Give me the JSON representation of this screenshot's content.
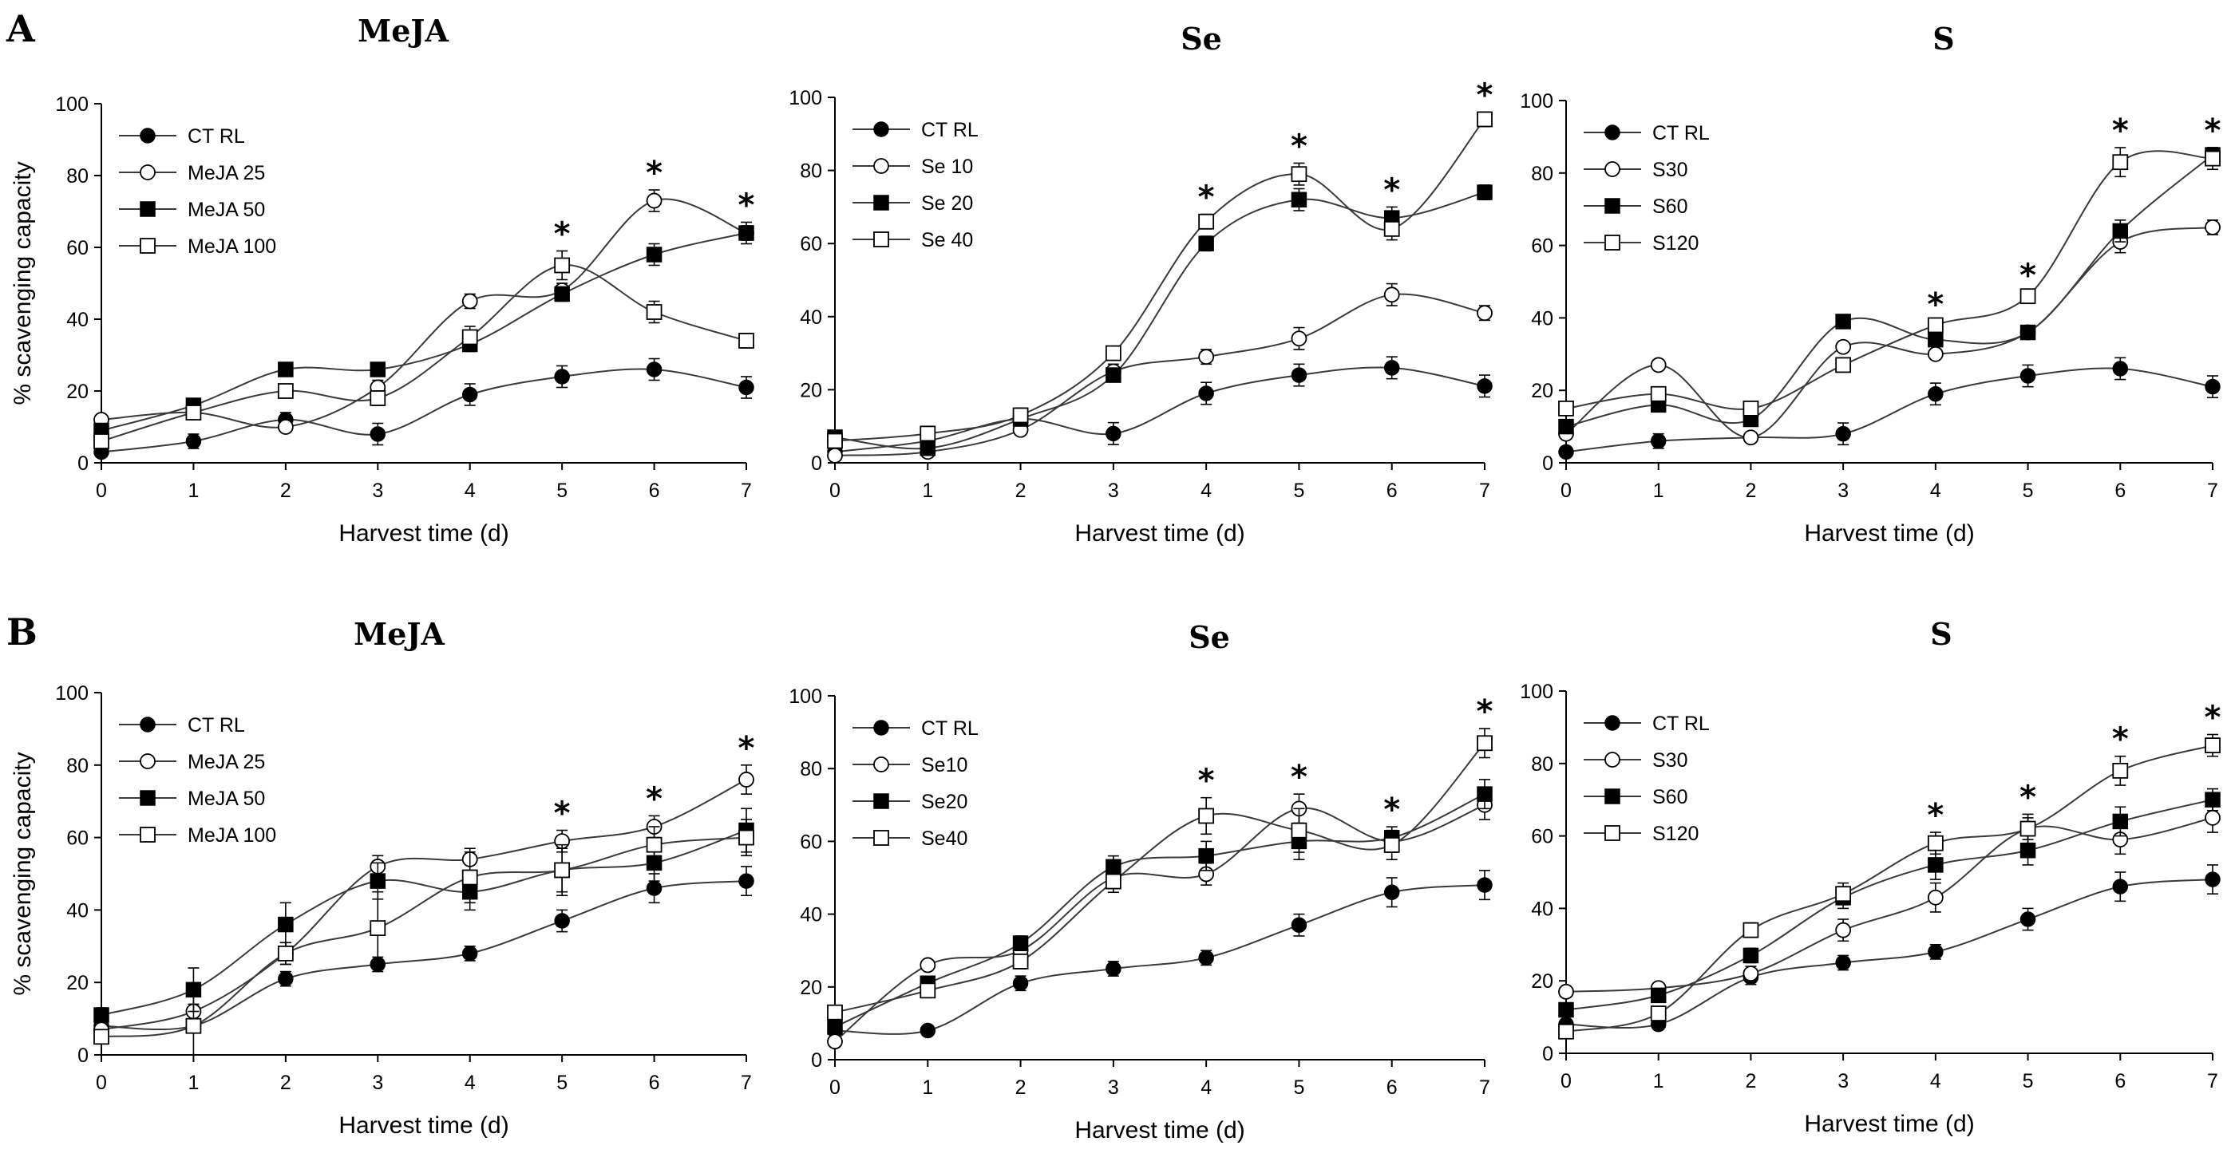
{
  "figure": {
    "panel_letters": [
      "A",
      "B"
    ]
  },
  "chart_data": [
    {
      "type": "line",
      "row": 0,
      "col": 0,
      "title": "MeJA",
      "xlabel": "Harvest time (d)",
      "ylabel": "% scavenging capacity",
      "x": [
        0,
        1,
        2,
        3,
        4,
        5,
        6,
        7
      ],
      "xlim": [
        0,
        7
      ],
      "ylim": [
        0,
        100
      ],
      "xticks": [
        "0",
        "1",
        "2",
        "3",
        "4",
        "5",
        "6",
        "7"
      ],
      "yticks": [
        "0",
        "20",
        "40",
        "60",
        "80",
        "100"
      ],
      "legend_position": "top-left",
      "series": [
        {
          "name": "CT RL",
          "marker": "filled-circle",
          "values": [
            3,
            6,
            12,
            8,
            19,
            24,
            26,
            21
          ],
          "errors": [
            1,
            2,
            2,
            3,
            3,
            3,
            3,
            3
          ]
        },
        {
          "name": "MeJA 25",
          "marker": "open-circle",
          "values": [
            12,
            14,
            10,
            21,
            45,
            48,
            73,
            64
          ],
          "errors": [
            1,
            1,
            1,
            2,
            2,
            2,
            3,
            2
          ]
        },
        {
          "name": "MeJA 50",
          "marker": "filled-square",
          "values": [
            9,
            16,
            26,
            26,
            33,
            47,
            58,
            64
          ],
          "errors": [
            1,
            1,
            1,
            1,
            2,
            2,
            3,
            3
          ]
        },
        {
          "name": "MeJA 100",
          "marker": "open-square",
          "values": [
            6,
            14,
            20,
            18,
            35,
            55,
            42,
            34
          ],
          "errors": [
            1,
            1,
            1,
            2,
            3,
            4,
            3,
            2
          ]
        }
      ],
      "significant_x": [
        5,
        6,
        7
      ]
    },
    {
      "type": "line",
      "row": 0,
      "col": 1,
      "title": "Se",
      "xlabel": "Harvest time (d)",
      "ylabel": "",
      "x": [
        0,
        1,
        2,
        3,
        4,
        5,
        6,
        7
      ],
      "xlim": [
        0,
        7
      ],
      "ylim": [
        0,
        100
      ],
      "xticks": [
        "0",
        "1",
        "2",
        "3",
        "4",
        "5",
        "6",
        "7"
      ],
      "yticks": [
        "0",
        "20",
        "40",
        "60",
        "80",
        "100"
      ],
      "legend_position": "top-left",
      "series": [
        {
          "name": "CT RL",
          "marker": "filled-circle",
          "values": [
            3,
            6,
            12,
            8,
            19,
            24,
            26,
            21
          ],
          "errors": [
            1,
            2,
            2,
            3,
            3,
            3,
            3,
            3
          ]
        },
        {
          "name": "Se 10",
          "marker": "open-circle",
          "values": [
            2,
            3,
            9,
            25,
            29,
            34,
            46,
            41
          ],
          "errors": [
            1,
            1,
            1,
            2,
            2,
            3,
            3,
            2
          ]
        },
        {
          "name": "Se 20",
          "marker": "filled-square",
          "values": [
            7,
            4,
            12,
            24,
            60,
            72,
            67,
            74
          ],
          "errors": [
            1,
            1,
            1,
            1,
            2,
            3,
            3,
            2
          ]
        },
        {
          "name": "Se 40",
          "marker": "open-square",
          "values": [
            6,
            8,
            13,
            30,
            66,
            79,
            64,
            94
          ],
          "errors": [
            1,
            1,
            2,
            1,
            2,
            3,
            3,
            2
          ]
        }
      ],
      "significant_x": [
        4,
        5,
        6,
        7
      ]
    },
    {
      "type": "line",
      "row": 0,
      "col": 2,
      "title": "S",
      "xlabel": "Harvest time (d)",
      "ylabel": "",
      "x": [
        0,
        1,
        2,
        3,
        4,
        5,
        6,
        7
      ],
      "xlim": [
        0,
        7
      ],
      "ylim": [
        0,
        100
      ],
      "xticks": [
        "0",
        "1",
        "2",
        "3",
        "4",
        "5",
        "6",
        "7"
      ],
      "yticks": [
        "0",
        "20",
        "40",
        "60",
        "80",
        "100"
      ],
      "legend_position": "top-left",
      "series": [
        {
          "name": "CT RL",
          "marker": "filled-circle",
          "values": [
            3,
            6,
            7,
            8,
            19,
            24,
            26,
            21
          ],
          "errors": [
            1,
            2,
            1,
            3,
            3,
            3,
            3,
            3
          ]
        },
        {
          "name": "S30",
          "marker": "open-circle",
          "values": [
            8,
            27,
            7,
            32,
            30,
            36,
            61,
            65
          ],
          "errors": [
            1,
            1,
            1,
            1,
            1,
            1,
            3,
            2
          ]
        },
        {
          "name": "S60",
          "marker": "filled-square",
          "values": [
            10,
            16,
            12,
            39,
            34,
            36,
            64,
            85
          ],
          "errors": [
            1,
            1,
            1,
            1,
            1,
            1,
            3,
            2
          ]
        },
        {
          "name": "S120",
          "marker": "open-square",
          "values": [
            15,
            19,
            15,
            27,
            38,
            46,
            83,
            84
          ],
          "errors": [
            1,
            1,
            1,
            1,
            1,
            1,
            4,
            3
          ]
        }
      ],
      "significant_x": [
        4,
        5,
        6,
        7
      ]
    },
    {
      "type": "line",
      "row": 1,
      "col": 0,
      "title": "MeJA",
      "xlabel": "Harvest time (d)",
      "ylabel": "% scavenging capacity",
      "x": [
        0,
        1,
        2,
        3,
        4,
        5,
        6,
        7
      ],
      "xlim": [
        0,
        7
      ],
      "ylim": [
        0,
        100
      ],
      "xticks": [
        "0",
        "1",
        "2",
        "3",
        "4",
        "5",
        "6",
        "7"
      ],
      "yticks": [
        "0",
        "20",
        "40",
        "60",
        "80",
        "100"
      ],
      "legend_position": "top-left",
      "series": [
        {
          "name": "CT RL",
          "marker": "filled-circle",
          "values": [
            8,
            8,
            21,
            25,
            28,
            37,
            46,
            48
          ],
          "errors": [
            1,
            1,
            2,
            2,
            2,
            3,
            4,
            4
          ]
        },
        {
          "name": "MeJA 25",
          "marker": "open-circle",
          "values": [
            7,
            12,
            28,
            52,
            54,
            59,
            63,
            76
          ],
          "errors": [
            1,
            2,
            3,
            3,
            3,
            3,
            3,
            4
          ]
        },
        {
          "name": "MeJA 50",
          "marker": "filled-square",
          "values": [
            11,
            18,
            36,
            48,
            45,
            51,
            53,
            62
          ],
          "errors": [
            2,
            6,
            6,
            5,
            5,
            6,
            5,
            6
          ]
        },
        {
          "name": "MeJA 100",
          "marker": "open-square",
          "values": [
            5,
            8,
            28,
            35,
            49,
            51,
            58,
            60
          ],
          "errors": [
            1,
            10,
            3,
            10,
            7,
            7,
            5,
            5
          ]
        }
      ],
      "significant_x": [
        5,
        6,
        7
      ]
    },
    {
      "type": "line",
      "row": 1,
      "col": 1,
      "title": "Se",
      "xlabel": "Harvest time (d)",
      "ylabel": "",
      "x": [
        0,
        1,
        2,
        3,
        4,
        5,
        6,
        7
      ],
      "xlim": [
        0,
        7
      ],
      "ylim": [
        0,
        100
      ],
      "xticks": [
        "0",
        "1",
        "2",
        "3",
        "4",
        "5",
        "6",
        "7"
      ],
      "yticks": [
        "0",
        "20",
        "40",
        "60",
        "80",
        "100"
      ],
      "legend_position": "top-left",
      "series": [
        {
          "name": "CT RL",
          "marker": "filled-circle",
          "values": [
            8,
            8,
            21,
            25,
            28,
            37,
            46,
            48
          ],
          "errors": [
            1,
            1,
            2,
            2,
            2,
            3,
            4,
            4
          ]
        },
        {
          "name": "Se10",
          "marker": "open-circle",
          "values": [
            5,
            26,
            30,
            50,
            51,
            69,
            60,
            70
          ],
          "errors": [
            1,
            1,
            2,
            3,
            3,
            4,
            3,
            4
          ]
        },
        {
          "name": "Se20",
          "marker": "filled-square",
          "values": [
            9,
            21,
            32,
            53,
            56,
            60,
            61,
            73
          ],
          "errors": [
            1,
            1,
            2,
            3,
            4,
            5,
            3,
            4
          ]
        },
        {
          "name": "Se40",
          "marker": "open-square",
          "values": [
            13,
            19,
            27,
            49,
            67,
            63,
            59,
            87
          ],
          "errors": [
            1,
            1,
            2,
            3,
            5,
            6,
            4,
            4
          ]
        }
      ],
      "significant_x": [
        4,
        5,
        6,
        7
      ]
    },
    {
      "type": "line",
      "row": 1,
      "col": 2,
      "title": "S",
      "xlabel": "Harvest time (d)",
      "ylabel": "",
      "x": [
        0,
        1,
        2,
        3,
        4,
        5,
        6,
        7
      ],
      "xlim": [
        0,
        7
      ],
      "ylim": [
        0,
        100
      ],
      "xticks": [
        "0",
        "1",
        "2",
        "3",
        "4",
        "5",
        "6",
        "7"
      ],
      "yticks": [
        "0",
        "20",
        "40",
        "60",
        "80",
        "100"
      ],
      "legend_position": "top-left",
      "series": [
        {
          "name": "CT RL",
          "marker": "filled-circle",
          "values": [
            8,
            8,
            21,
            25,
            28,
            37,
            46,
            48
          ],
          "errors": [
            1,
            1,
            2,
            2,
            2,
            3,
            4,
            4
          ]
        },
        {
          "name": "S30",
          "marker": "open-circle",
          "values": [
            17,
            18,
            22,
            34,
            43,
            62,
            59,
            65
          ],
          "errors": [
            1,
            1,
            2,
            3,
            4,
            3,
            4,
            4
          ]
        },
        {
          "name": "S60",
          "marker": "filled-square",
          "values": [
            12,
            16,
            27,
            43,
            52,
            56,
            64,
            70
          ],
          "errors": [
            1,
            1,
            2,
            3,
            4,
            4,
            4,
            3
          ]
        },
        {
          "name": "S120",
          "marker": "open-square",
          "values": [
            6,
            11,
            34,
            44,
            58,
            62,
            78,
            85
          ],
          "errors": [
            1,
            1,
            2,
            3,
            3,
            4,
            4,
            3
          ]
        }
      ],
      "significant_x": [
        4,
        5,
        6,
        7
      ]
    }
  ]
}
